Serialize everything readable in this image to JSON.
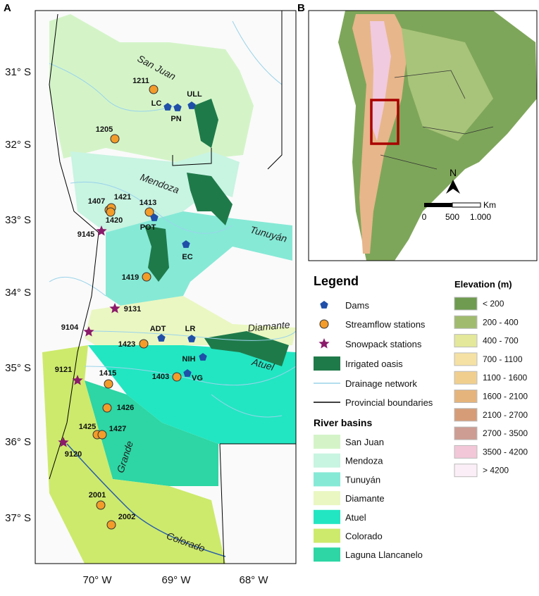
{
  "panel_a": {
    "label": "A",
    "lat_labels": [
      "31° S",
      "32° S",
      "33° S",
      "34° S",
      "35° S",
      "36° S",
      "37° S"
    ],
    "lon_labels": [
      "70° W",
      "69° W",
      "68° W"
    ],
    "rivers": [
      "San Juan",
      "Mendoza",
      "Tunuyán",
      "Diamante",
      "Atuel",
      "Grande",
      "Colorado"
    ],
    "stations": [
      "1211",
      "ULL",
      "LC",
      "PN",
      "1205",
      "1407",
      "1421",
      "1413",
      "1420",
      "POT",
      "9145",
      "EC",
      "1419",
      "9131",
      "9104",
      "ADT",
      "LR",
      "1423",
      "NIH",
      "9121",
      "1415",
      "1403",
      "VG",
      "1426",
      "1425",
      "1427",
      "9120",
      "2001",
      "2002"
    ]
  },
  "panel_b": {
    "label": "B",
    "north": "N",
    "scale_unit": "Km",
    "scale_ticks": [
      "0",
      "500",
      "1.000"
    ]
  },
  "legend": {
    "title": "Legend",
    "items": [
      "Dams",
      "Streamflow stations",
      "Snowpack stations",
      "Irrigated oasis",
      "Drainage network",
      "Provincial boundaries"
    ],
    "basins_title": "River basins",
    "basins": [
      "San Juan",
      "Mendoza",
      "Tunuyán",
      "Diamante",
      "Atuel",
      "Colorado",
      "Laguna Llancanelo"
    ],
    "elevation_title": "Elevation (m)",
    "elevation_classes": [
      "< 200",
      "200 - 400",
      "400 - 700",
      "700 - 1100",
      "1100 - 1600",
      "1600 - 2100",
      "2100 - 2700",
      "2700 - 3500",
      "3500 - 4200",
      "> 4200"
    ]
  }
}
